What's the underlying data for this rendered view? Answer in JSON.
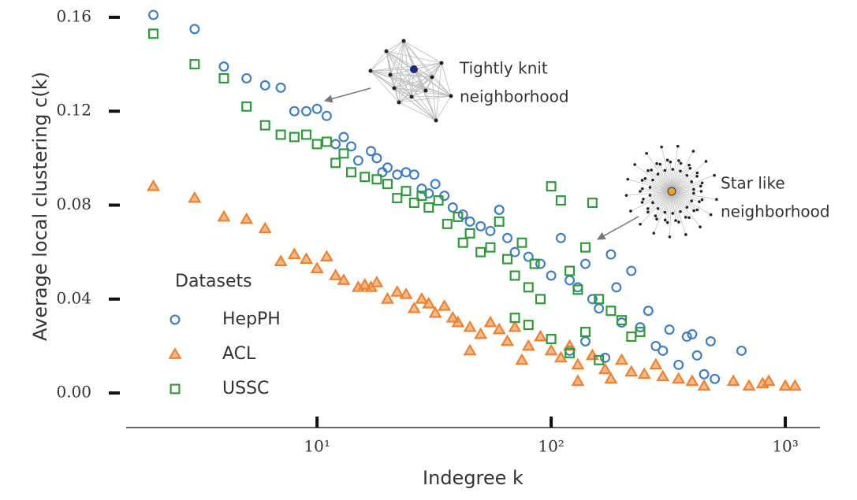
{
  "chart_data": {
    "type": "scatter",
    "x_label": "Indegree k",
    "y_label": "Average local clustering c(k)",
    "log_x": true,
    "xlim": [
      1.53,
      1406
    ],
    "ylim": [
      -0.007,
      0.164
    ],
    "xticks": [
      {
        "value": 10,
        "label": "10¹"
      },
      {
        "value": 100,
        "label": "10²"
      },
      {
        "value": 1000,
        "label": "10³"
      }
    ],
    "yticks": [
      {
        "value": 0,
        "label": "0.00"
      },
      0.04,
      0.08,
      0.12,
      0.16
    ],
    "legend_title": "Datasets",
    "legend": "lower left",
    "annotations": [
      "Tightly knit",
      "neighborhood",
      "Star like",
      "neighborhood"
    ],
    "series": [
      {
        "name": "HepPH",
        "marker": "circle",
        "color": "#3f7fc1",
        "x": [
          2,
          3,
          4,
          5,
          6,
          7,
          8,
          9,
          10,
          11,
          12,
          13,
          14,
          15,
          17,
          18,
          19,
          20,
          22,
          24,
          26,
          28,
          30,
          32,
          35,
          38,
          42,
          45,
          50,
          55,
          60,
          65,
          70,
          80,
          90,
          100,
          110,
          120,
          130,
          140,
          150,
          160,
          180,
          190,
          200,
          220,
          240,
          260,
          280,
          300,
          320,
          350,
          380,
          400,
          420,
          450,
          480,
          500,
          650,
          140,
          170,
          120
        ],
        "values": [
          0.161,
          0.155,
          0.139,
          0.134,
          0.131,
          0.13,
          0.12,
          0.12,
          0.121,
          0.118,
          0.106,
          0.109,
          0.105,
          0.099,
          0.103,
          0.1,
          0.094,
          0.096,
          0.093,
          0.094,
          0.093,
          0.087,
          0.085,
          0.089,
          0.084,
          0.079,
          0.076,
          0.073,
          0.071,
          0.069,
          0.078,
          0.066,
          0.06,
          0.058,
          0.055,
          0.05,
          0.066,
          0.048,
          0.045,
          0.055,
          0.04,
          0.036,
          0.059,
          0.045,
          0.03,
          0.052,
          0.028,
          0.035,
          0.02,
          0.018,
          0.027,
          0.012,
          0.024,
          0.025,
          0.016,
          0.008,
          0.022,
          0.006,
          0.018,
          0.022,
          0.015,
          0.018
        ]
      },
      {
        "name": "ACL",
        "marker": "triangle",
        "color": "#f0812f",
        "x": [
          2,
          3,
          4,
          5,
          6,
          7,
          8,
          9,
          10,
          11,
          12,
          13,
          15,
          16,
          17,
          18,
          20,
          22,
          24,
          26,
          28,
          30,
          32,
          35,
          38,
          40,
          45,
          50,
          55,
          60,
          65,
          70,
          80,
          90,
          100,
          110,
          120,
          130,
          150,
          170,
          200,
          220,
          250,
          280,
          300,
          350,
          400,
          450,
          600,
          700,
          800,
          850,
          1000,
          1100,
          130,
          180,
          75,
          45
        ],
        "values": [
          0.088,
          0.083,
          0.075,
          0.074,
          0.07,
          0.056,
          0.059,
          0.057,
          0.053,
          0.058,
          0.05,
          0.048,
          0.045,
          0.046,
          0.045,
          0.047,
          0.04,
          0.043,
          0.042,
          0.036,
          0.04,
          0.038,
          0.034,
          0.037,
          0.032,
          0.03,
          0.028,
          0.025,
          0.03,
          0.027,
          0.022,
          0.028,
          0.02,
          0.024,
          0.018,
          0.015,
          0.02,
          0.012,
          0.016,
          0.01,
          0.014,
          0.009,
          0.008,
          0.012,
          0.007,
          0.006,
          0.005,
          0.003,
          0.005,
          0.003,
          0.004,
          0.005,
          0.003,
          0.003,
          0.005,
          0.006,
          0.014,
          0.018
        ]
      },
      {
        "name": "USSC",
        "marker": "square",
        "color": "#2f9a3a",
        "x": [
          2,
          3,
          4,
          5,
          6,
          7,
          8,
          9,
          10,
          11,
          12,
          13,
          14,
          16,
          18,
          20,
          22,
          24,
          26,
          28,
          30,
          33,
          36,
          40,
          42,
          45,
          50,
          55,
          60,
          65,
          70,
          75,
          80,
          85,
          90,
          100,
          110,
          120,
          130,
          140,
          150,
          160,
          180,
          200,
          220,
          240,
          70,
          100,
          140,
          160,
          120,
          80
        ],
        "values": [
          0.153,
          0.14,
          0.134,
          0.122,
          0.114,
          0.11,
          0.109,
          0.11,
          0.106,
          0.107,
          0.098,
          0.102,
          0.094,
          0.092,
          0.091,
          0.089,
          0.083,
          0.086,
          0.081,
          0.084,
          0.079,
          0.082,
          0.072,
          0.075,
          0.064,
          0.068,
          0.06,
          0.062,
          0.073,
          0.057,
          0.05,
          0.064,
          0.045,
          0.055,
          0.04,
          0.088,
          0.082,
          0.052,
          0.044,
          0.062,
          0.081,
          0.04,
          0.035,
          0.031,
          0.024,
          0.026,
          0.032,
          0.023,
          0.026,
          0.014,
          0.017,
          0.029
        ]
      }
    ]
  }
}
